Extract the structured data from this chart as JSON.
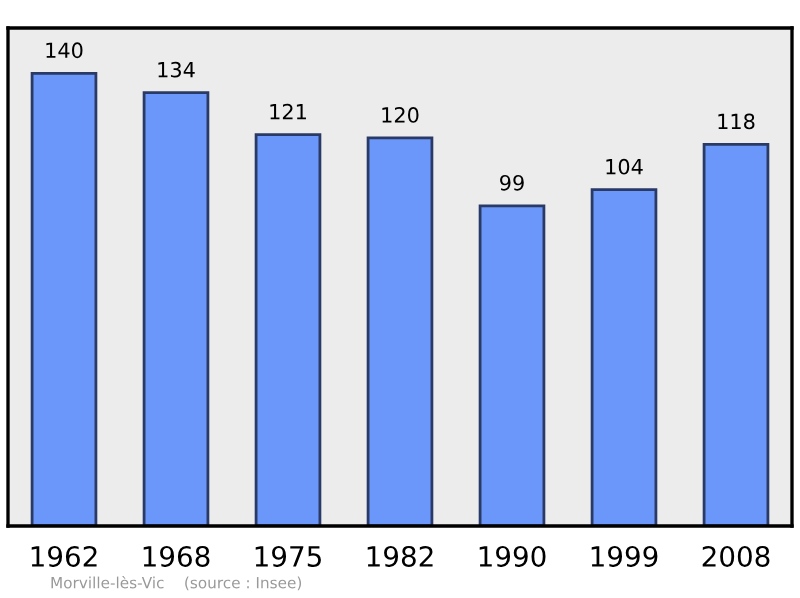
{
  "chart_data": {
    "type": "bar",
    "categories": [
      "1962",
      "1968",
      "1975",
      "1982",
      "1990",
      "1999",
      "2008"
    ],
    "values": [
      140,
      134,
      121,
      120,
      99,
      104,
      118
    ],
    "color": "#6b96fa",
    "data_labels": true,
    "grid": false,
    "annotations": [
      "Morville-lès-Vic    (source : Insee)"
    ]
  }
}
